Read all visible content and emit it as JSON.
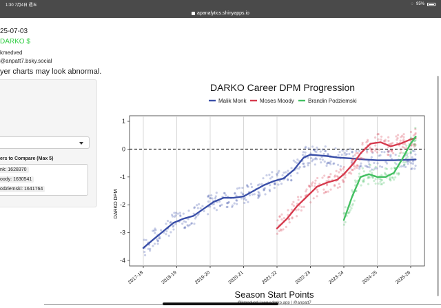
{
  "status": {
    "time_date": "1:30  7月4日 週五",
    "battery": "95%"
  },
  "browser": {
    "url": "apanalytics.shinyapps.io"
  },
  "left": {
    "date": "25-07-03",
    "darko_link": "DARKO $",
    "byline": "kmedved",
    "handle": "@anpatt7.bsky.social",
    "notice": "yer charts may look abnormal.",
    "compare_label": "ers to Compare (Max 5)",
    "chips": [
      "nk: 1628370",
      "oody: 1630541",
      "odziemski: 1641764"
    ]
  },
  "chart_data": {
    "type": "line",
    "title": "DARKO Career DPM Progression",
    "xlabel": "Season Start Points",
    "ylabel": "DARKO DPM",
    "ylim": [
      -4.2,
      1.2
    ],
    "yticks": [
      1,
      0,
      -1,
      -2,
      -3,
      -4
    ],
    "xtick_labels": [
      "2017-18",
      "2018-19",
      "2019-20",
      "2020-21",
      "2021-22",
      "2022-23",
      "2023-24",
      "2024-25",
      "2025-26"
    ],
    "reference_line": 0,
    "legend_position": "top",
    "credit": "@kmedved | www.darko.app | @anpatt7",
    "series": [
      {
        "name": "Malik Monk",
        "color": "#3a4fa8",
        "x": [
          0,
          0.3,
          0.6,
          0.9,
          1.2,
          1.5,
          1.8,
          2.1,
          2.4,
          2.7,
          3.0,
          3.3,
          3.6,
          3.9,
          4.2,
          4.5,
          4.8,
          5.0,
          5.2,
          5.5,
          5.8,
          6.2,
          6.6,
          7.0,
          7.5,
          8.0,
          8.15
        ],
        "y": [
          -3.55,
          -3.25,
          -2.95,
          -2.65,
          -2.5,
          -2.4,
          -2.15,
          -1.9,
          -1.75,
          -1.75,
          -1.7,
          -1.5,
          -1.3,
          -1.15,
          -1.05,
          -0.75,
          -0.3,
          -0.2,
          -0.22,
          -0.25,
          -0.3,
          -0.33,
          -0.37,
          -0.4,
          -0.4,
          -0.38,
          -0.37
        ]
      },
      {
        "name": "Moses Moody",
        "color": "#d63b4e",
        "x": [
          4.0,
          4.3,
          4.6,
          4.9,
          5.2,
          5.5,
          5.8,
          6.0,
          6.3,
          6.5,
          6.8,
          7.1,
          7.4,
          7.7,
          8.0,
          8.15
        ],
        "y": [
          -2.85,
          -2.5,
          -2.05,
          -1.7,
          -1.35,
          -1.2,
          -1.1,
          -0.9,
          -0.5,
          -0.15,
          0.2,
          0.25,
          0.1,
          0.2,
          0.35,
          0.4
        ]
      },
      {
        "name": "Brandin Podziemski",
        "color": "#44c062",
        "x": [
          6.0,
          6.25,
          6.5,
          6.75,
          7.0,
          7.25,
          7.5,
          7.75,
          8.0,
          8.15
        ],
        "y": [
          -2.55,
          -1.7,
          -1.0,
          -0.9,
          -1.0,
          -1.0,
          -0.85,
          -0.35,
          0.2,
          0.45
        ]
      }
    ]
  }
}
